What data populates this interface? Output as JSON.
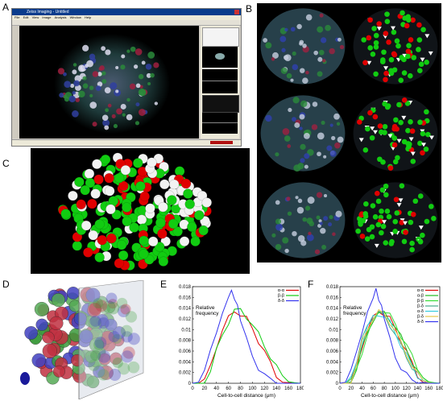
{
  "panels": {
    "a": {
      "label": "A",
      "window_title": "Zeiss Imaging - Untitled",
      "menu": [
        "File",
        "Edit",
        "View",
        "Image",
        "Analysis",
        "Window",
        "Help"
      ]
    },
    "b": {
      "label": "B"
    },
    "c": {
      "label": "C"
    },
    "d": {
      "label": "D"
    },
    "e": {
      "label": "E"
    },
    "f": {
      "label": "F"
    }
  },
  "colors": {
    "alpha": "#e00000",
    "beta": "#11cc11",
    "delta": "#2222ee",
    "white": "#ffffff",
    "bg": "#000000"
  },
  "chart_data": [
    {
      "panel": "E",
      "type": "line",
      "xlabel": "Cell-to-cell distance (μm)",
      "ylabel": "Relative frequency",
      "xlim": [
        0,
        180
      ],
      "ylim": [
        0,
        0.018
      ],
      "xticks": [
        "0",
        "20",
        "40",
        "60",
        "80",
        "100",
        "120",
        "140",
        "160",
        "180"
      ],
      "yticks": [
        "0",
        "0.002",
        "0.004",
        "0.006",
        "0.008",
        "0.01",
        "0.012",
        "0.014",
        "0.016",
        "0.018"
      ],
      "legend_position": "top-right",
      "series": [
        {
          "name": "α-α",
          "color": "#e00000",
          "x": [
            0,
            10,
            20,
            30,
            40,
            50,
            60,
            70,
            80,
            90,
            100,
            110,
            120,
            130,
            140,
            150,
            160,
            170,
            180
          ],
          "y": [
            0,
            0,
            0.0005,
            0.003,
            0.007,
            0.01,
            0.012,
            0.0135,
            0.013,
            0.012,
            0.01,
            0.008,
            0.006,
            0.0035,
            0.0015,
            0.0005,
            0.0001,
            0,
            0
          ]
        },
        {
          "name": "β-β",
          "color": "#11cc11",
          "x": [
            0,
            10,
            20,
            30,
            40,
            50,
            60,
            70,
            80,
            90,
            100,
            110,
            120,
            130,
            140,
            150,
            160,
            170,
            180
          ],
          "y": [
            0,
            0,
            0.0004,
            0.0025,
            0.006,
            0.009,
            0.0115,
            0.0135,
            0.0135,
            0.0125,
            0.011,
            0.009,
            0.007,
            0.005,
            0.003,
            0.0012,
            0.0003,
            0.0001,
            0
          ]
        },
        {
          "name": "δ-δ",
          "color": "#3333ee",
          "x": [
            0,
            10,
            20,
            30,
            40,
            50,
            60,
            65,
            70,
            75,
            80,
            90,
            100,
            110,
            120,
            130,
            140,
            150,
            160,
            170,
            180
          ],
          "y": [
            0,
            0.0002,
            0.002,
            0.006,
            0.01,
            0.013,
            0.0155,
            0.0175,
            0.016,
            0.014,
            0.012,
            0.008,
            0.005,
            0.003,
            0.0015,
            0.0005,
            0.0001,
            0,
            0,
            0,
            0
          ]
        }
      ]
    },
    {
      "panel": "F",
      "type": "line",
      "xlabel": "Cell-to-cell distance (μm)",
      "ylabel": "Relative frequency",
      "xlim": [
        0,
        180
      ],
      "ylim": [
        0,
        0.018
      ],
      "xticks": [
        "0",
        "20",
        "40",
        "60",
        "80",
        "100",
        "120",
        "140",
        "160",
        "180"
      ],
      "yticks": [
        "0",
        "0.002",
        "0.004",
        "0.006",
        "0.008",
        "0.01",
        "0.012",
        "0.014",
        "0.016",
        "0.018"
      ],
      "legend_position": "top-right",
      "series": [
        {
          "name": "α-α",
          "color": "#e00000",
          "x": [
            0,
            10,
            20,
            30,
            40,
            50,
            60,
            70,
            80,
            90,
            100,
            110,
            120,
            130,
            140,
            150,
            160,
            170,
            180
          ],
          "y": [
            0,
            0,
            0.0005,
            0.003,
            0.007,
            0.01,
            0.012,
            0.0135,
            0.013,
            0.012,
            0.01,
            0.008,
            0.006,
            0.0035,
            0.0015,
            0.0005,
            0.0001,
            0,
            0
          ]
        },
        {
          "name": "α-β",
          "color": "#22bb22",
          "x": [
            0,
            10,
            20,
            30,
            40,
            50,
            60,
            70,
            80,
            90,
            100,
            110,
            120,
            130,
            140,
            150,
            160,
            170,
            180
          ],
          "y": [
            0,
            0,
            0.0005,
            0.0028,
            0.0065,
            0.0095,
            0.012,
            0.013,
            0.013,
            0.012,
            0.0105,
            0.0085,
            0.0065,
            0.004,
            0.002,
            0.0008,
            0.0002,
            0,
            0
          ]
        },
        {
          "name": "β-β",
          "color": "#33dd33",
          "x": [
            0,
            10,
            20,
            30,
            40,
            50,
            60,
            70,
            80,
            90,
            100,
            110,
            120,
            130,
            140,
            150,
            160,
            170,
            180
          ],
          "y": [
            0,
            0,
            0.0004,
            0.0025,
            0.006,
            0.009,
            0.0115,
            0.0135,
            0.0135,
            0.0125,
            0.011,
            0.009,
            0.007,
            0.005,
            0.003,
            0.0012,
            0.0003,
            0.0001,
            0
          ]
        },
        {
          "name": "β-δ",
          "color": "#44aa88",
          "x": [
            0,
            10,
            20,
            30,
            40,
            50,
            60,
            70,
            80,
            90,
            100,
            110,
            120,
            130,
            140,
            150,
            160,
            170,
            180
          ],
          "y": [
            0,
            0,
            0.0008,
            0.004,
            0.008,
            0.011,
            0.0125,
            0.013,
            0.0125,
            0.011,
            0.009,
            0.007,
            0.005,
            0.003,
            0.0015,
            0.0005,
            0.0001,
            0,
            0
          ]
        },
        {
          "name": "α-δ",
          "color": "#33ccdd",
          "x": [
            0,
            10,
            20,
            30,
            40,
            50,
            60,
            70,
            80,
            90,
            100,
            110,
            120,
            130,
            140,
            150,
            160,
            170,
            180
          ],
          "y": [
            0,
            0,
            0.0007,
            0.0038,
            0.0078,
            0.0105,
            0.0122,
            0.013,
            0.0125,
            0.0112,
            0.0093,
            0.0072,
            0.0052,
            0.0031,
            0.0015,
            0.0005,
            0.0001,
            0,
            0
          ]
        },
        {
          "name": "β-δ",
          "color": "#e6c84a",
          "x": [
            0,
            10,
            20,
            30,
            40,
            50,
            60,
            70,
            80,
            90,
            100,
            110,
            120,
            130,
            140,
            150,
            160,
            170,
            180
          ],
          "y": [
            0,
            0,
            0.0006,
            0.0035,
            0.0075,
            0.0102,
            0.0122,
            0.0132,
            0.0128,
            0.0115,
            0.0096,
            0.0075,
            0.0055,
            0.0033,
            0.0016,
            0.0006,
            0.0001,
            0,
            0
          ]
        },
        {
          "name": "δ-δ",
          "color": "#3333ee",
          "x": [
            0,
            10,
            20,
            30,
            40,
            50,
            60,
            65,
            70,
            75,
            80,
            90,
            100,
            110,
            120,
            130,
            140,
            150,
            160,
            170,
            180
          ],
          "y": [
            0,
            0.0002,
            0.002,
            0.006,
            0.01,
            0.013,
            0.0155,
            0.0175,
            0.016,
            0.014,
            0.012,
            0.008,
            0.005,
            0.003,
            0.0015,
            0.0005,
            0.0001,
            0,
            0,
            0,
            0
          ]
        }
      ]
    }
  ]
}
